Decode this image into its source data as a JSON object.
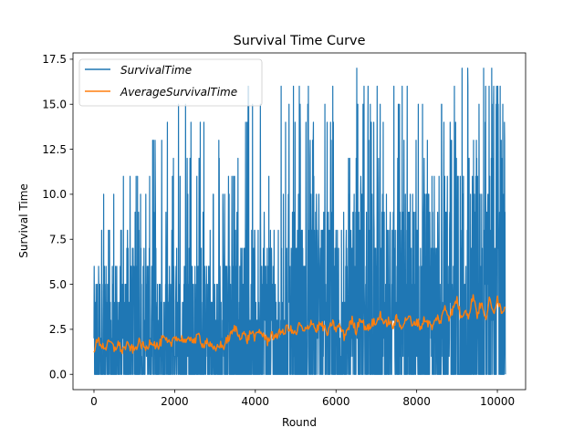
{
  "chart_data": {
    "type": "line",
    "title": "Survival Time Curve",
    "xlabel": "Round",
    "ylabel": "Survival Time",
    "xlim": [
      -520,
      10700
    ],
    "ylim": [
      -0.85,
      17.85
    ],
    "xticks": [
      0,
      2000,
      4000,
      6000,
      8000,
      10000
    ],
    "xtick_labels": [
      "0",
      "2000",
      "4000",
      "6000",
      "8000",
      "10000"
    ],
    "yticks": [
      0.0,
      2.5,
      5.0,
      7.5,
      10.0,
      12.5,
      15.0,
      17.5
    ],
    "ytick_labels": [
      "0.0",
      "2.5",
      "5.0",
      "7.5",
      "10.0",
      "12.5",
      "15.0",
      "17.5"
    ],
    "grid": false,
    "legend_position": "top-left",
    "n_rounds": 10200,
    "series": [
      {
        "name": "SurvivalTime",
        "color": "#1f77b4",
        "y_min": 0,
        "y_max": 17,
        "range_by_round": {
          "x": [
            0,
            500,
            1000,
            1500,
            2000,
            2500,
            3000,
            3500,
            4000,
            4500,
            5000,
            5500,
            6000,
            6500,
            7000,
            7500,
            8000,
            8500,
            9000,
            9500,
            10000,
            10200
          ],
          "upper": [
            13,
            12,
            11,
            14,
            15,
            17,
            13,
            15,
            17,
            17,
            16,
            17,
            17,
            17,
            17,
            17,
            17,
            17,
            17,
            17,
            17,
            17
          ],
          "dense_upper": [
            6,
            6,
            6,
            6,
            6,
            6,
            6,
            7,
            8,
            8,
            9,
            9,
            9,
            10,
            10,
            10,
            10,
            11,
            12,
            12,
            14,
            14
          ],
          "lower": [
            0,
            0,
            0,
            0,
            0,
            0,
            0,
            0,
            0,
            0,
            0,
            0,
            0,
            0,
            0,
            0,
            0,
            0,
            0,
            0,
            0,
            0
          ]
        }
      },
      {
        "name": "AverageSurvivalTime",
        "color": "#ff7f0e",
        "x": [
          0,
          100,
          200,
          300,
          400,
          500,
          600,
          700,
          800,
          900,
          1000,
          1100,
          1200,
          1300,
          1400,
          1500,
          1600,
          1700,
          1800,
          1900,
          2000,
          2100,
          2200,
          2300,
          2400,
          2500,
          2600,
          2700,
          2800,
          2900,
          3000,
          3100,
          3200,
          3300,
          3400,
          3500,
          3600,
          3700,
          3800,
          3900,
          4000,
          4100,
          4200,
          4300,
          4400,
          4500,
          4600,
          4700,
          4800,
          4900,
          5000,
          5100,
          5200,
          5300,
          5400,
          5500,
          5600,
          5700,
          5800,
          5900,
          6000,
          6100,
          6200,
          6300,
          6400,
          6500,
          6600,
          6700,
          6800,
          6900,
          7000,
          7100,
          7200,
          7300,
          7400,
          7500,
          7600,
          7700,
          7800,
          7900,
          8000,
          8100,
          8200,
          8300,
          8400,
          8500,
          8600,
          8700,
          8800,
          8900,
          9000,
          9100,
          9200,
          9300,
          9400,
          9500,
          9600,
          9700,
          9800,
          9900,
          10000,
          10100,
          10200
        ],
        "values": [
          1.4,
          1.9,
          1.6,
          1.5,
          1.8,
          1.4,
          1.7,
          1.3,
          1.6,
          1.5,
          1.3,
          1.8,
          1.6,
          1.4,
          1.9,
          1.7,
          1.5,
          2.0,
          1.8,
          1.6,
          2.2,
          1.9,
          2.0,
          1.7,
          2.1,
          1.8,
          2.2,
          1.6,
          1.9,
          1.5,
          1.3,
          1.7,
          1.5,
          1.9,
          2.2,
          2.6,
          2.1,
          2.3,
          1.9,
          2.4,
          2.0,
          2.4,
          2.2,
          1.8,
          2.3,
          1.9,
          2.5,
          2.2,
          2.7,
          2.4,
          2.2,
          2.8,
          2.3,
          2.6,
          3.0,
          2.4,
          2.8,
          2.6,
          2.2,
          2.9,
          2.5,
          2.7,
          2.1,
          2.6,
          3.0,
          2.4,
          3.2,
          2.7,
          2.5,
          2.9,
          2.8,
          3.4,
          2.7,
          3.0,
          2.6,
          3.1,
          2.7,
          2.9,
          3.3,
          2.6,
          3.0,
          2.6,
          3.1,
          2.8,
          2.6,
          3.2,
          2.9,
          3.8,
          3.2,
          3.6,
          4.2,
          3.1,
          3.7,
          3.2,
          4.5,
          3.3,
          4.0,
          3.0,
          4.1,
          3.4,
          4.3,
          3.5,
          3.8
        ]
      }
    ]
  }
}
